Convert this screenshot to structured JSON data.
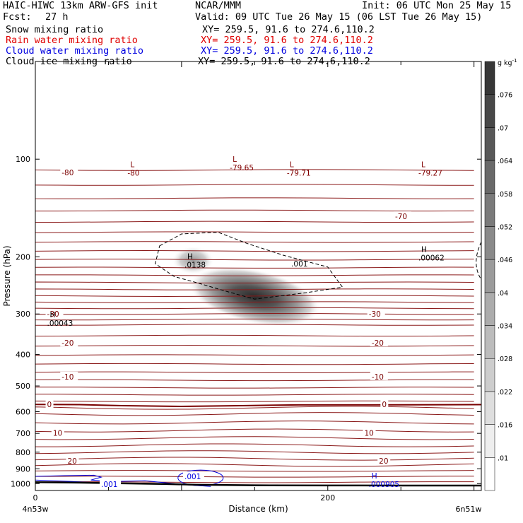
{
  "header": {
    "title_left": "HAIC-HIWC 13km ARW-GFS init",
    "title_center": "NCAR/MMM",
    "init": "Init: 06 UTC Mon 25 May 15",
    "fcst_label": "Fcst:",
    "fcst_value": "27 h",
    "valid": "Valid: 09 UTC Tue 26 May 15 (06 LST Tue 26 May 15)",
    "fields": [
      {
        "name": "Snow mixing ratio",
        "xy": "XY= 259.5, 91.6 to 274.6,110.2",
        "color": "#000000"
      },
      {
        "name": "Rain water mixing ratio",
        "xy": "XY= 259.5, 91.6 to 274.6,110.2",
        "color": "#e00000"
      },
      {
        "name": "Cloud water mixing ratio",
        "xy": "XY= 259.5, 91.6 to 274.6,110.2",
        "color": "#0000e0"
      },
      {
        "name": "Cloud ice mixing ratio",
        "xy": "XY= 259.5, 91.6 to 274.6,110.2",
        "color": "#000000"
      }
    ]
  },
  "chart_data": {
    "type": "cross-section contour",
    "xlabel": "Distance (km)",
    "ylabel": "Pressure (hPa)",
    "xlim": [
      0,
      305
    ],
    "ylim": [
      1050,
      50
    ],
    "y_scale": "log",
    "x_ticks": [
      0,
      100,
      200
    ],
    "x_tick_labels": [
      "0",
      "",
      "200"
    ],
    "y_ticks": [
      100,
      200,
      300,
      400,
      500,
      600,
      700,
      800,
      900,
      1000
    ],
    "x_endpoint_labels": [
      "4n53w",
      "6n51w"
    ],
    "colorbar": {
      "units": "g kg",
      "levels": [
        ".01",
        ".016",
        ".022",
        ".028",
        ".034",
        ".04",
        ".046",
        ".052",
        ".058",
        ".064",
        ".07",
        ".076"
      ]
    },
    "temperature_contours": [
      {
        "label": "-80",
        "p": 117
      },
      {
        "label": "-70",
        "p": 157
      },
      {
        "label": "-30",
        "p": 302
      },
      {
        "label": "-20",
        "p": 370
      },
      {
        "label": "-10",
        "p": 468
      },
      {
        "label": "0",
        "p": 570
      },
      {
        "label": "10",
        "p": 698
      },
      {
        "label": "20",
        "p": 845
      }
    ],
    "temperature_labels": [
      {
        "text": "-80",
        "x": 18,
        "p": 110
      },
      {
        "text": "-70",
        "x": 246,
        "p": 150
      },
      {
        "text": "-30",
        "x": 8,
        "p": 300
      },
      {
        "text": "-30",
        "x": 228,
        "p": 300
      },
      {
        "text": "-20",
        "x": 18,
        "p": 368
      },
      {
        "text": "-20",
        "x": 230,
        "p": 368
      },
      {
        "text": "-10",
        "x": 18,
        "p": 468
      },
      {
        "text": "-10",
        "x": 230,
        "p": 468
      },
      {
        "text": "0",
        "x": 8,
        "p": 570
      },
      {
        "text": "0",
        "x": 237,
        "p": 570
      },
      {
        "text": "10",
        "x": 12,
        "p": 698
      },
      {
        "text": "10",
        "x": 225,
        "p": 698
      },
      {
        "text": "20",
        "x": 22,
        "p": 850
      },
      {
        "text": "20",
        "x": 235,
        "p": 850
      }
    ],
    "extrema": [
      {
        "mark": "L",
        "value": "-80",
        "x": 63,
        "p": 107,
        "color": "#800000"
      },
      {
        "mark": "L",
        "value": "-79.65",
        "x": 133,
        "p": 103,
        "color": "#800000"
      },
      {
        "mark": "L",
        "value": "-79.71",
        "x": 172,
        "p": 107,
        "color": "#800000"
      },
      {
        "mark": "L",
        "value": "-79.27",
        "x": 262,
        "p": 107,
        "color": "#800000"
      },
      {
        "mark": "H",
        "value": ".00062",
        "x": 262,
        "p": 195,
        "color": "#000000"
      },
      {
        "mark": "H",
        "value": ".0138",
        "x": 102,
        "p": 205,
        "color": "#000000"
      },
      {
        "mark": "H",
        "value": ".00043",
        "x": 8,
        "p": 310,
        "color": "#000000"
      },
      {
        "mark": "H",
        "value": ".000905",
        "x": 228,
        "p": 975,
        "color": "#0000e0"
      }
    ],
    "ice_contour_label": {
      "text": ".001",
      "x": 175,
      "p": 210
    },
    "cloud_water_labels": [
      {
        "text": ".001",
        "x": 102,
        "p": 950
      },
      {
        "text": ".001",
        "x": 45,
        "p": 1003
      }
    ],
    "snow_max": {
      "x": 150,
      "p": 265,
      "value_range": [
        0.01,
        0.076
      ]
    }
  }
}
